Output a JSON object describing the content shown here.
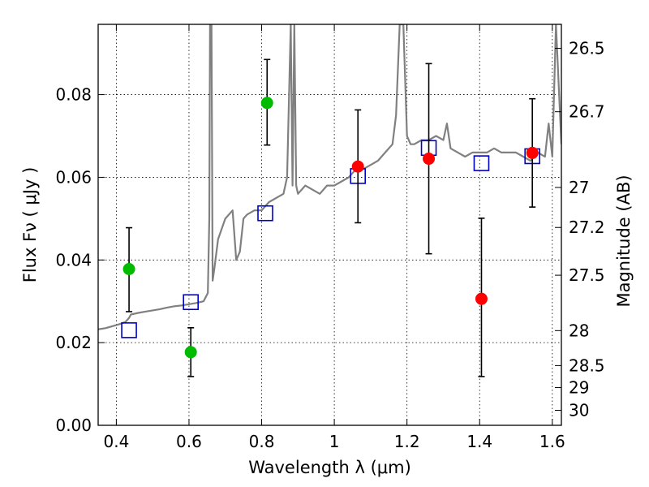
{
  "chart_data": {
    "type": "scatter",
    "xlabel": "Wavelength  λ (μm)",
    "ylabel": "Flux  Fν  ( μJy )",
    "y2label": "Magnitude (AB)",
    "xlim": [
      0.35,
      1.625
    ],
    "ylim": [
      0.0,
      0.097
    ],
    "grid": true,
    "x_ticks": [
      {
        "value": 0.4,
        "label": "0.4"
      },
      {
        "value": 0.6,
        "label": "0.6"
      },
      {
        "value": 0.8,
        "label": "0.8"
      },
      {
        "value": 1.0,
        "label": "1"
      },
      {
        "value": 1.2,
        "label": "1.2"
      },
      {
        "value": 1.4,
        "label": "1.4"
      },
      {
        "value": 1.6,
        "label": "1.6"
      }
    ],
    "y_ticks": [
      {
        "value": 0.0,
        "label": "0.00"
      },
      {
        "value": 0.02,
        "label": "0.02"
      },
      {
        "value": 0.04,
        "label": "0.04"
      },
      {
        "value": 0.06,
        "label": "0.06"
      },
      {
        "value": 0.08,
        "label": "0.08"
      }
    ],
    "y2_ticks": [
      {
        "value": 26.5,
        "label": "26.5"
      },
      {
        "value": 26.7,
        "label": "26.7"
      },
      {
        "value": 27.0,
        "label": "27"
      },
      {
        "value": 27.2,
        "label": "27.2"
      },
      {
        "value": 27.5,
        "label": "27.5"
      },
      {
        "value": 28.0,
        "label": "28"
      },
      {
        "value": 28.5,
        "label": "28.5"
      },
      {
        "value": 29.0,
        "label": "29"
      },
      {
        "value": 30.0,
        "label": "30"
      }
    ],
    "colors": {
      "spectrum": "#808080",
      "model": "#0000cc",
      "green": "#00bb00",
      "red": "#ff0000",
      "errorbar": "#000000"
    },
    "spectrum": {
      "x": [
        0.35,
        0.37,
        0.39,
        0.41,
        0.425,
        0.435,
        0.44,
        0.46,
        0.48,
        0.5,
        0.52,
        0.54,
        0.56,
        0.58,
        0.6,
        0.62,
        0.64,
        0.652,
        0.656,
        0.658,
        0.662,
        0.665,
        0.67,
        0.68,
        0.7,
        0.72,
        0.73,
        0.74,
        0.75,
        0.76,
        0.78,
        0.8,
        0.82,
        0.84,
        0.86,
        0.87,
        0.88,
        0.885,
        0.89,
        0.895,
        0.9,
        0.92,
        0.94,
        0.96,
        0.98,
        1.0,
        1.02,
        1.04,
        1.06,
        1.08,
        1.1,
        1.12,
        1.14,
        1.16,
        1.17,
        1.18,
        1.19,
        1.2,
        1.21,
        1.22,
        1.24,
        1.26,
        1.28,
        1.3,
        1.31,
        1.32,
        1.34,
        1.36,
        1.38,
        1.4,
        1.42,
        1.44,
        1.46,
        1.48,
        1.5,
        1.52,
        1.54,
        1.56,
        1.58,
        1.59,
        1.6,
        1.61,
        1.625
      ],
      "y": [
        0.0232,
        0.0235,
        0.024,
        0.0245,
        0.025,
        0.026,
        0.0268,
        0.0272,
        0.0275,
        0.0278,
        0.0281,
        0.0285,
        0.0288,
        0.029,
        0.0293,
        0.0296,
        0.03,
        0.032,
        0.05,
        0.097,
        0.097,
        0.035,
        0.038,
        0.045,
        0.05,
        0.052,
        0.04,
        0.042,
        0.05,
        0.051,
        0.052,
        0.052,
        0.054,
        0.055,
        0.056,
        0.06,
        0.097,
        0.058,
        0.097,
        0.058,
        0.056,
        0.058,
        0.057,
        0.056,
        0.058,
        0.058,
        0.059,
        0.06,
        0.062,
        0.062,
        0.063,
        0.064,
        0.066,
        0.068,
        0.075,
        0.097,
        0.097,
        0.07,
        0.068,
        0.068,
        0.069,
        0.069,
        0.07,
        0.069,
        0.073,
        0.067,
        0.066,
        0.065,
        0.066,
        0.066,
        0.066,
        0.067,
        0.066,
        0.066,
        0.066,
        0.065,
        0.064,
        0.066,
        0.065,
        0.073,
        0.065,
        0.097,
        0.068
      ]
    },
    "series": [
      {
        "marker": "open-square",
        "color": "#0000cc",
        "x": [
          0.435,
          0.605,
          0.81,
          1.065,
          1.26,
          1.405,
          1.545
        ],
        "y": [
          0.023,
          0.0298,
          0.0513,
          0.0603,
          0.0671,
          0.0634,
          0.0651
        ]
      },
      {
        "marker": "filled-circle",
        "color": "#00bb00",
        "x": [
          0.435,
          0.605,
          0.815
        ],
        "y": [
          0.0378,
          0.0177,
          0.078
        ],
        "yerr_low": [
          0.0275,
          0.0118,
          0.0678
        ],
        "yerr_high": [
          0.0478,
          0.0236,
          0.0885
        ]
      },
      {
        "marker": "filled-circle",
        "color": "#ff0000",
        "x": [
          1.065,
          1.26,
          1.405,
          1.545
        ],
        "y": [
          0.0626,
          0.0645,
          0.0306,
          0.0659
        ],
        "yerr_low": [
          0.049,
          0.0415,
          0.0118,
          0.0528
        ],
        "yerr_high": [
          0.0763,
          0.0875,
          0.0501,
          0.079
        ]
      }
    ]
  }
}
